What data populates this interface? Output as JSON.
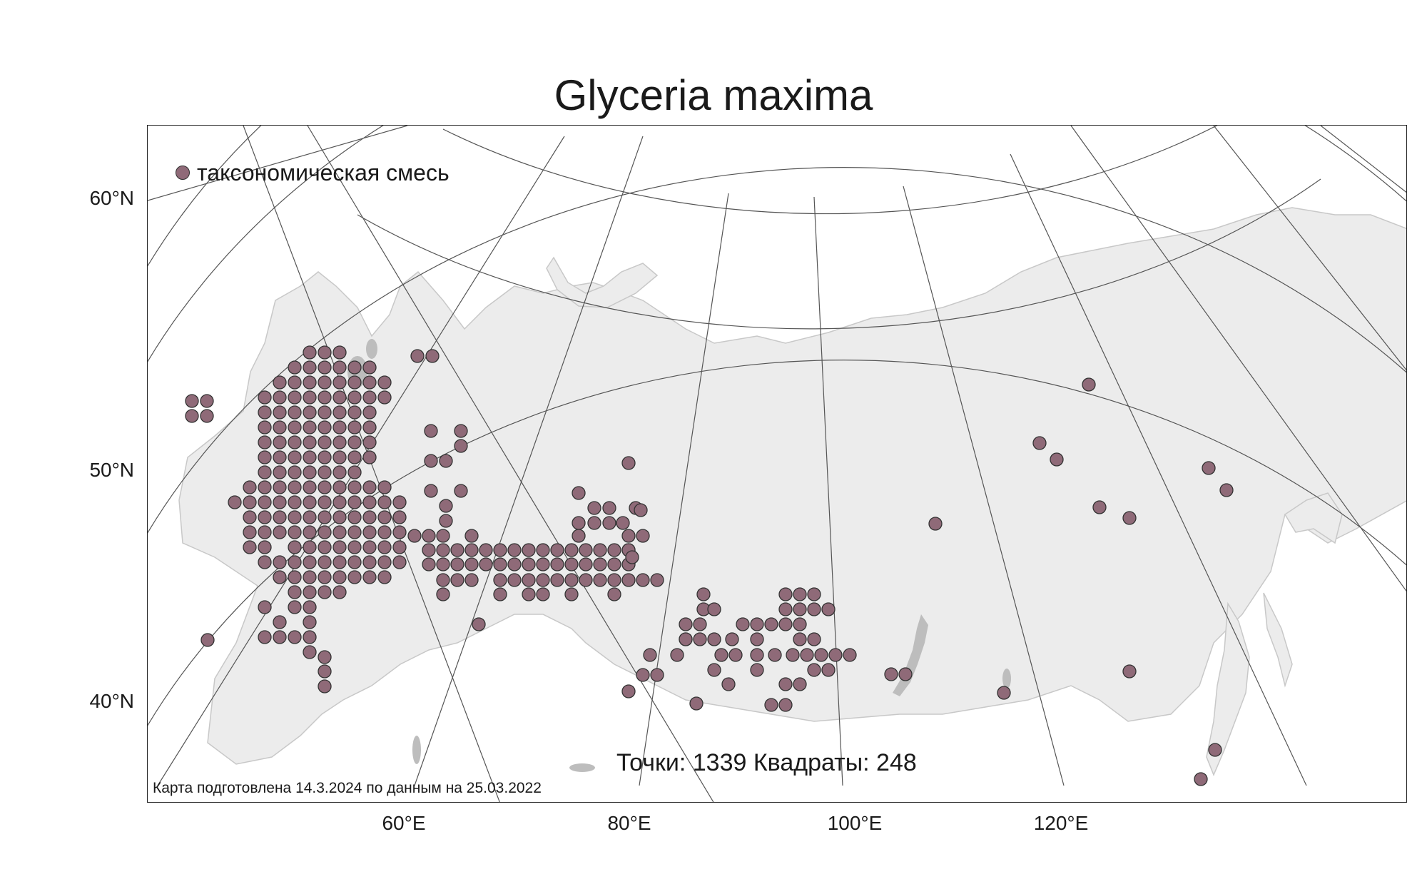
{
  "title": "Glyceria maxima",
  "legend": {
    "label": "таксономическая смесь",
    "color": "#8f6a78",
    "marker_icon": "circle-marker"
  },
  "stats": {
    "text": "Точки: 1339 Квадраты: 248",
    "points": 1339,
    "squares": 248
  },
  "credit": "Карта подготовлена 14.3.2024 по данным на 25.03.2022",
  "lat_labels": [
    "60°N",
    "50°N",
    "40°N"
  ],
  "lon_labels": [
    "60°E",
    "80°E",
    "100°E",
    "120°E"
  ],
  "colors": {
    "land": "#ececec",
    "coast": "#c8c8c8",
    "graticule": "#555555",
    "marker": "#8f6a78",
    "marker_edge": "#333333"
  }
}
